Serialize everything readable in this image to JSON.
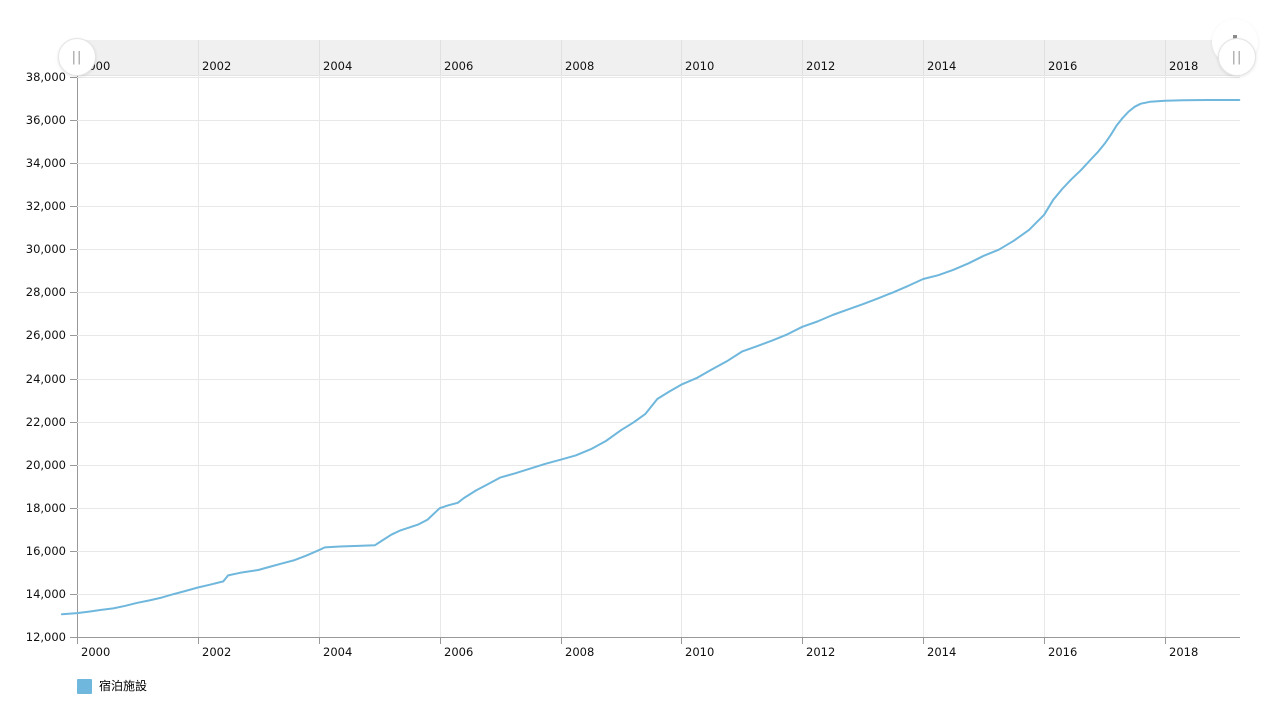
{
  "chart_data": {
    "type": "line",
    "title": "",
    "x_axis": {
      "kind": "year",
      "range": [
        1999.75,
        2019.27
      ],
      "ticks": [
        2000,
        2002,
        2004,
        2006,
        2008,
        2010,
        2012,
        2014,
        2016,
        2018
      ],
      "tick_labels": [
        "2000",
        "2002",
        "2004",
        "2006",
        "2008",
        "2010",
        "2012",
        "2014",
        "2016",
        "2018"
      ],
      "labels_shown_top_and_bottom": true
    },
    "y_axis": {
      "range": [
        12000,
        38000
      ],
      "ticks": [
        12000,
        14000,
        16000,
        18000,
        20000,
        22000,
        24000,
        26000,
        28000,
        30000,
        32000,
        34000,
        36000,
        38000
      ],
      "tick_labels": [
        "12,000",
        "14,000",
        "16,000",
        "18,000",
        "20,000",
        "22,000",
        "24,000",
        "26,000",
        "28,000",
        "30,000",
        "32,000",
        "34,000",
        "36,000",
        "38,000"
      ]
    },
    "grid": true,
    "legend_position": "bottom-left",
    "series": [
      {
        "name": "宿泊施設",
        "color": "#6fb7dc",
        "points": [
          [
            1999.75,
            13060
          ],
          [
            2000,
            13110
          ],
          [
            2000.2,
            13180
          ],
          [
            2000.4,
            13260
          ],
          [
            2000.6,
            13330
          ],
          [
            2000.8,
            13450
          ],
          [
            2001,
            13590
          ],
          [
            2001.2,
            13700
          ],
          [
            2001.4,
            13830
          ],
          [
            2001.6,
            13990
          ],
          [
            2001.8,
            14140
          ],
          [
            2002,
            14300
          ],
          [
            2002.2,
            14430
          ],
          [
            2002.42,
            14580
          ],
          [
            2002.5,
            14860
          ],
          [
            2002.7,
            14980
          ],
          [
            2003,
            15110
          ],
          [
            2003.2,
            15270
          ],
          [
            2003.4,
            15420
          ],
          [
            2003.6,
            15570
          ],
          [
            2003.8,
            15790
          ],
          [
            2004,
            16030
          ],
          [
            2004.1,
            16160
          ],
          [
            2004.35,
            16200
          ],
          [
            2004.65,
            16230
          ],
          [
            2004.93,
            16260
          ],
          [
            2005.05,
            16480
          ],
          [
            2005.2,
            16750
          ],
          [
            2005.35,
            16950
          ],
          [
            2005.5,
            17090
          ],
          [
            2005.65,
            17230
          ],
          [
            2005.8,
            17450
          ],
          [
            2006,
            17980
          ],
          [
            2006.15,
            18120
          ],
          [
            2006.3,
            18230
          ],
          [
            2006.4,
            18450
          ],
          [
            2006.6,
            18800
          ],
          [
            2006.8,
            19100
          ],
          [
            2007,
            19400
          ],
          [
            2007.25,
            19600
          ],
          [
            2007.5,
            19820
          ],
          [
            2007.75,
            20040
          ],
          [
            2008,
            20230
          ],
          [
            2008.25,
            20430
          ],
          [
            2008.5,
            20720
          ],
          [
            2008.75,
            21100
          ],
          [
            2009,
            21600
          ],
          [
            2009.2,
            21950
          ],
          [
            2009.4,
            22350
          ],
          [
            2009.6,
            23050
          ],
          [
            2009.8,
            23400
          ],
          [
            2010,
            23720
          ],
          [
            2010.25,
            24020
          ],
          [
            2010.5,
            24420
          ],
          [
            2010.75,
            24800
          ],
          [
            2011,
            25250
          ],
          [
            2011.25,
            25500
          ],
          [
            2011.5,
            25760
          ],
          [
            2011.75,
            26050
          ],
          [
            2012,
            26400
          ],
          [
            2012.25,
            26650
          ],
          [
            2012.5,
            26950
          ],
          [
            2012.75,
            27200
          ],
          [
            2013,
            27450
          ],
          [
            2013.25,
            27720
          ],
          [
            2013.5,
            28000
          ],
          [
            2013.75,
            28300
          ],
          [
            2014,
            28620
          ],
          [
            2014.25,
            28800
          ],
          [
            2014.5,
            29050
          ],
          [
            2014.75,
            29350
          ],
          [
            2015,
            29700
          ],
          [
            2015.25,
            29980
          ],
          [
            2015.5,
            30400
          ],
          [
            2015.75,
            30900
          ],
          [
            2016,
            31600
          ],
          [
            2016.15,
            32300
          ],
          [
            2016.3,
            32800
          ],
          [
            2016.45,
            33250
          ],
          [
            2016.6,
            33650
          ],
          [
            2016.75,
            34100
          ],
          [
            2016.9,
            34550
          ],
          [
            2017,
            34900
          ],
          [
            2017.1,
            35300
          ],
          [
            2017.2,
            35750
          ],
          [
            2017.3,
            36100
          ],
          [
            2017.4,
            36400
          ],
          [
            2017.5,
            36620
          ],
          [
            2017.6,
            36760
          ],
          [
            2017.75,
            36850
          ],
          [
            2018,
            36900
          ],
          [
            2018.3,
            36920
          ],
          [
            2018.7,
            36930
          ],
          [
            2019.23,
            36930
          ]
        ]
      }
    ]
  },
  "legend": {
    "items": [
      {
        "label": "宿泊施設",
        "color": "#6fb7dc"
      }
    ]
  },
  "scrollbar": {
    "left_grip_glyph": "||",
    "right_grip_glyph": "||"
  },
  "toolbar": {
    "export_icon": "download-icon"
  },
  "colors": {
    "line": "#6fb7dc",
    "grid": "#e8e8e8",
    "grid_in_scrollbar": "#e0e0e0",
    "axis": "#999999",
    "label": "#101010",
    "scrollbar_bg": "#f0f0f0"
  }
}
